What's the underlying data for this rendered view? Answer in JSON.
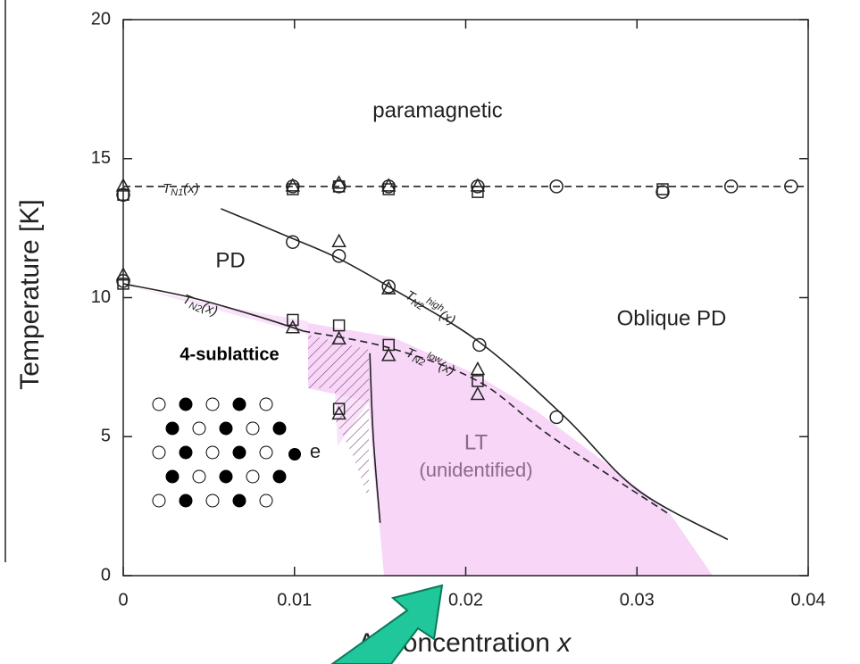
{
  "chart_data": {
    "type": "scatter",
    "x_label": "Al concentration ",
    "x_label_var": "x",
    "y_label": "Temperature [K]",
    "xlim": [
      0,
      0.04
    ],
    "xticks": [
      0,
      0.01,
      0.02,
      0.03,
      0.04
    ],
    "ylim": [
      0,
      20
    ],
    "yticks": [
      0,
      5,
      10,
      15,
      20
    ],
    "color": "#222222",
    "series": [
      {
        "marker": "circle",
        "x": [
          0,
          0.0099,
          0.0126,
          0.0155,
          0.0207,
          0.0253,
          0.0315,
          0.0355,
          0.039,
          0.0099,
          0.0126,
          0.0155,
          0.0208,
          0.0253,
          0
        ],
        "values": [
          13.7,
          14.0,
          14.0,
          14.0,
          14.0,
          14.0,
          13.8,
          14.0,
          14.0,
          12.0,
          11.5,
          10.4,
          8.3,
          5.7,
          10.6
        ]
      },
      {
        "marker": "triangle",
        "x": [
          0,
          0.0099,
          0.0126,
          0.0155,
          0.0207,
          0.0126,
          0.0155,
          0.0207,
          0.0207,
          0.0099,
          0.0126,
          0.0155,
          0.0126,
          0
        ],
        "values": [
          14.0,
          14.0,
          14.1,
          14.0,
          14.0,
          12.0,
          10.3,
          7.4,
          6.5,
          8.9,
          8.5,
          7.9,
          5.8,
          10.8
        ]
      },
      {
        "marker": "square",
        "x": [
          0,
          0.0099,
          0.0126,
          0.0155,
          0.0207,
          0.0315,
          0.0099,
          0.0126,
          0.0155,
          0.0207,
          0.0126,
          0
        ],
        "values": [
          13.7,
          13.9,
          14.0,
          13.9,
          13.8,
          13.9,
          9.2,
          9.0,
          8.3,
          7.0,
          6.0,
          10.5
        ]
      }
    ],
    "curves": [
      {
        "style": "dashed",
        "x": [
          0,
          0.04
        ],
        "values": [
          14.0,
          14.0
        ]
      },
      {
        "style": "solid",
        "x": [
          0.0057,
          0.01,
          0.0126,
          0.0155,
          0.0208,
          0.0258,
          0.03,
          0.0353
        ],
        "values": [
          13.2,
          12.1,
          11.4,
          10.4,
          8.4,
          5.7,
          3.1,
          1.3
        ]
      },
      {
        "style": "solid",
        "x": [
          0,
          0.004,
          0.008,
          0.0105
        ],
        "values": [
          10.5,
          10.0,
          9.3,
          8.8
        ]
      },
      {
        "style": "dashed",
        "x": [
          0.0105,
          0.0155,
          0.0207,
          0.025,
          0.0319
        ],
        "values": [
          8.8,
          8.2,
          7.0,
          5.0,
          2.2
        ]
      },
      {
        "style": "solid",
        "x": [
          0.0144,
          0.0146,
          0.015
        ],
        "values": [
          8.0,
          5.0,
          1.9
        ]
      }
    ],
    "annotations": [
      {
        "text": "T",
        "sub": "N1",
        "tail": "(x)"
      },
      {
        "text": "T",
        "sub": "N2",
        "sup": "high",
        "tail": "(x)"
      },
      {
        "text": "T",
        "sub": "N2",
        "sup": "low",
        "tail": "(x)"
      },
      {
        "text": "T",
        "sub": "N2",
        "tail": "(x)"
      }
    ],
    "regions": [
      "paramagnetic",
      "PD",
      "Oblique PD",
      "LT",
      "(unidentified)",
      "4-sublattice",
      "e"
    ]
  }
}
